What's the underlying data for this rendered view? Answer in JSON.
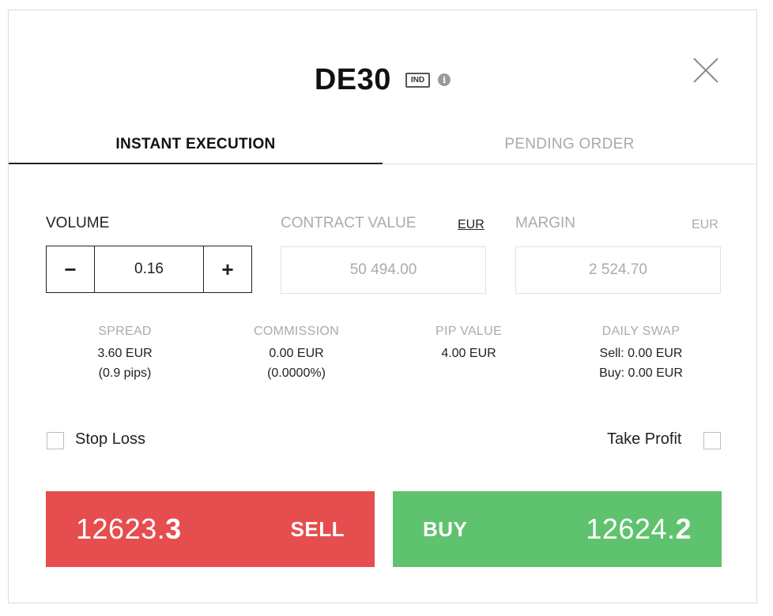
{
  "header": {
    "symbol": "DE30",
    "badge": "IND",
    "info_icon": "info-icon",
    "close_icon": "close-icon"
  },
  "tabs": [
    {
      "label": "INSTANT EXECUTION",
      "active": true
    },
    {
      "label": "PENDING ORDER",
      "active": false
    }
  ],
  "volume": {
    "label": "VOLUME",
    "value": "0.16",
    "minus": "−",
    "plus": "+"
  },
  "contract_value": {
    "label": "CONTRACT VALUE",
    "currency": "EUR",
    "value": "50 494.00"
  },
  "margin": {
    "label": "MARGIN",
    "currency": "EUR",
    "value": "2 524.70"
  },
  "stats": {
    "spread": {
      "label": "SPREAD",
      "line1": "3.60 EUR",
      "line2": "(0.9 pips)"
    },
    "commission": {
      "label": "COMMISSION",
      "line1": "0.00 EUR",
      "line2": "(0.0000%)"
    },
    "pip_value": {
      "label": "PIP VALUE",
      "line1": "4.00 EUR"
    },
    "daily_swap": {
      "label": "DAILY SWAP",
      "line1": "Sell: 0.00 EUR",
      "line2": "Buy: 0.00 EUR"
    }
  },
  "options": {
    "stop_loss": {
      "label": "Stop Loss",
      "checked": false
    },
    "take_profit": {
      "label": "Take Profit",
      "checked": false
    }
  },
  "sell": {
    "price_main": "12623.",
    "price_last": "3",
    "label": "SELL",
    "color": "#e64d4f"
  },
  "buy": {
    "price_main": "12624.",
    "price_last": "2",
    "label": "BUY",
    "color": "#5fc26f"
  }
}
